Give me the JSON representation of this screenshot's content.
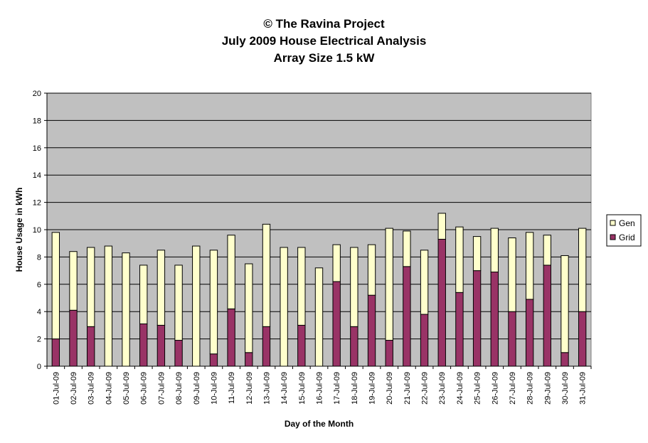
{
  "chart_data": {
    "type": "bar",
    "stacked": true,
    "title_lines": [
      "© The Ravina Project",
      "July 2009 House Electrical Analysis",
      "Array Size 1.5 kW"
    ],
    "xlabel": "Day of the Month",
    "ylabel": "House Usage in kWh",
    "ylim": [
      0,
      20
    ],
    "yticks": [
      0,
      2,
      4,
      6,
      8,
      10,
      12,
      14,
      16,
      18,
      20
    ],
    "grid": true,
    "legend_position": "right",
    "categories": [
      "01-Jul-09",
      "02-Jul-09",
      "03-Jul-09",
      "04-Jul-09",
      "05-Jul-09",
      "06-Jul-09",
      "07-Jul-09",
      "08-Jul-09",
      "09-Jul-09",
      "10-Jul-09",
      "11-Jul-09",
      "12-Jul-09",
      "13-Jul-09",
      "14-Jul-09",
      "15-Jul-09",
      "16-Jul-09",
      "17-Jul-09",
      "18-Jul-09",
      "19-Jul-09",
      "20-Jul-09",
      "21-Jul-09",
      "22-Jul-09",
      "23-Jul-09",
      "24-Jul-09",
      "25-Jul-09",
      "26-Jul-09",
      "27-Jul-09",
      "28-Jul-09",
      "29-Jul-09",
      "30-Jul-09",
      "31-Jul-09"
    ],
    "series": [
      {
        "name": "Grid",
        "color": "#993366",
        "values": [
          2.0,
          4.1,
          2.9,
          0.0,
          0.0,
          3.1,
          3.0,
          1.9,
          0.0,
          0.9,
          4.2,
          1.0,
          2.9,
          0.0,
          3.0,
          0.0,
          6.2,
          2.9,
          5.2,
          1.9,
          7.3,
          3.8,
          9.3,
          5.4,
          7.0,
          6.9,
          4.0,
          4.9,
          7.4,
          1.0,
          4.0
        ]
      },
      {
        "name": "Gen",
        "color": "#FFFFCC",
        "values": [
          7.8,
          4.3,
          5.8,
          8.8,
          8.3,
          4.3,
          5.5,
          5.5,
          8.8,
          7.6,
          5.4,
          6.5,
          7.5,
          8.7,
          5.7,
          7.2,
          2.7,
          5.8,
          3.7,
          8.2,
          2.6,
          4.7,
          1.9,
          4.8,
          2.5,
          3.2,
          5.4,
          4.9,
          2.2,
          7.1,
          6.1
        ]
      }
    ],
    "plot_background": "#C0C0C0",
    "outline_color": "#000000"
  }
}
